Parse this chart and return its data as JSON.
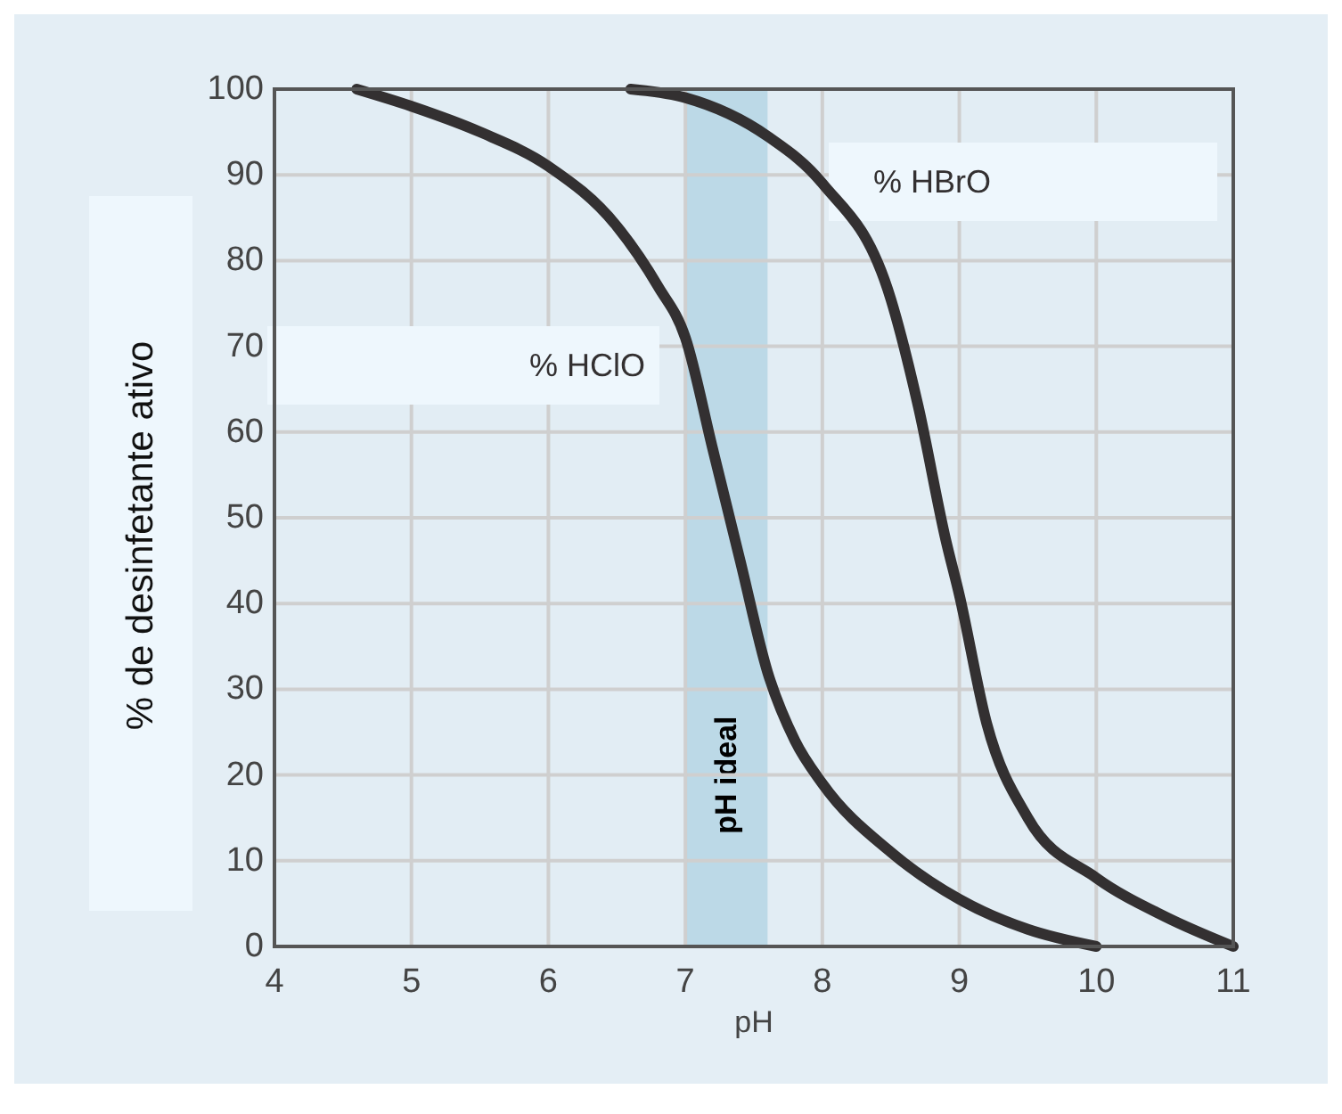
{
  "chart_data": {
    "type": "line",
    "xlabel": "pH",
    "ylabel": "% de desinfetante ativo",
    "xlim": [
      4,
      11
    ],
    "xticks": [
      4,
      5,
      6,
      7,
      8,
      9,
      10,
      11
    ],
    "ylim": [
      0,
      100
    ],
    "yticks": [
      0,
      10,
      20,
      30,
      40,
      50,
      60,
      70,
      80,
      90,
      100
    ],
    "grid": true,
    "line_style": "solid",
    "marker": "none",
    "bands": [
      {
        "axis": "x",
        "from": 7,
        "to": 7.6,
        "label": "pH ideal",
        "color": "#bcd9e7"
      }
    ],
    "series": [
      {
        "name": "% HClO",
        "color": "#333031",
        "x": [
          4.6,
          5,
          5.5,
          6,
          6.5,
          6.8,
          7,
          7.2,
          7.4,
          7.6,
          7.8,
          8,
          8.5,
          9,
          9.5,
          10
        ],
        "values": [
          100,
          98,
          95,
          91,
          84,
          77,
          71,
          58,
          45,
          32,
          24,
          19,
          11,
          5.5,
          2,
          0
        ]
      },
      {
        "name": "% HBrO",
        "color": "#333031",
        "x": [
          6.6,
          7,
          7.6,
          8,
          8.5,
          8.7,
          8.9,
          9,
          9.2,
          9.5,
          10,
          10.5,
          11
        ],
        "values": [
          100,
          99,
          94.5,
          89,
          75.5,
          63,
          47.5,
          41,
          26,
          15,
          8,
          3.5,
          0
        ]
      }
    ]
  }
}
